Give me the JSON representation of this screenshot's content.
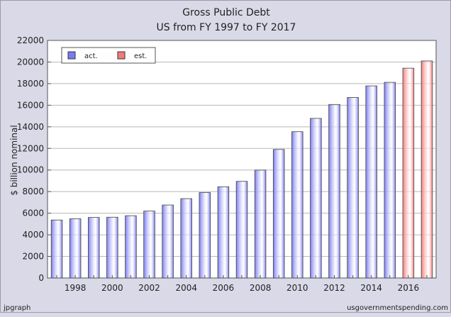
{
  "chart_data": {
    "type": "bar",
    "title": "Gross Public Debt",
    "subtitle": "US from FY 1997 to FY 2017",
    "ylabel": "$ billion nominal",
    "ylim": [
      0,
      22000
    ],
    "yticks": [
      0,
      2000,
      4000,
      6000,
      8000,
      10000,
      12000,
      14000,
      16000,
      18000,
      20000,
      22000
    ],
    "xlim": [
      1996.5,
      2017.5
    ],
    "xticks": [
      1998,
      2000,
      2002,
      2004,
      2006,
      2008,
      2010,
      2012,
      2014,
      2016
    ],
    "grid": true,
    "legend_placement": "top-left",
    "series": [
      {
        "name": "act.",
        "color": "#7b7bf2",
        "x": [
          1997,
          1998,
          1999,
          2000,
          2001,
          2002,
          2003,
          2004,
          2005,
          2006,
          2007,
          2008,
          2009,
          2010,
          2011,
          2012,
          2013,
          2014,
          2015
        ],
        "values": [
          5370,
          5480,
          5610,
          5630,
          5770,
          6200,
          6760,
          7350,
          7910,
          8450,
          8950,
          9990,
          11900,
          13550,
          14780,
          16070,
          16720,
          17790,
          18120
        ]
      },
      {
        "name": "est.",
        "color": "#f27b7b",
        "x": [
          2016,
          2017
        ],
        "values": [
          19430,
          20100
        ]
      }
    ]
  },
  "footer": {
    "left": "jpgraph",
    "right": "usgovernmentspending.com"
  }
}
